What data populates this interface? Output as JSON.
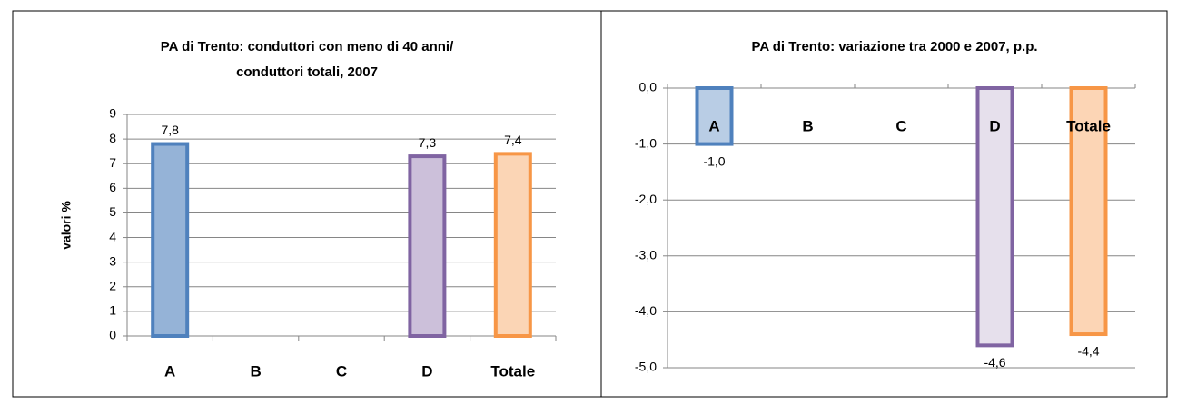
{
  "chart_data": [
    {
      "type": "bar",
      "title": [
        "PA di Trento: conduttori con meno di 40 anni/",
        "conduttori  totali, 2007"
      ],
      "y_label": "valori %",
      "categories": [
        "A",
        "B",
        "C",
        "D",
        "Totale"
      ],
      "values": [
        7.8,
        null,
        null,
        7.3,
        7.4
      ],
      "value_labels": [
        "7,8",
        null,
        null,
        "7,3",
        "7,4"
      ],
      "colors": [
        "#95b3d7",
        null,
        null,
        "#ccc0da",
        "#fbd5b5"
      ],
      "edge_colors": [
        "#4f81bd",
        null,
        null,
        "#8064a2",
        "#f79646"
      ],
      "ylim": [
        0,
        9
      ],
      "yticks": [
        0,
        1,
        2,
        3,
        4,
        5,
        6,
        7,
        8,
        9
      ],
      "grid": true
    },
    {
      "type": "bar",
      "title": [
        "PA di Trento: variazione tra 2000 e 2007, p.p."
      ],
      "categories": [
        "A",
        "B",
        "C",
        "D",
        "Totale"
      ],
      "values": [
        -1.0,
        null,
        null,
        -4.6,
        -4.4
      ],
      "value_labels": [
        "-1,0",
        null,
        null,
        "-4,6",
        "-4,4"
      ],
      "colors": [
        "#b9cde5",
        null,
        null,
        "#e6e0ec",
        "#fcd5b5"
      ],
      "edge_colors": [
        "#4f81bd",
        null,
        null,
        "#8064a2",
        "#f79646"
      ],
      "ylim": [
        -5,
        0
      ],
      "yticks": [
        {
          "value": 0,
          "label": "0,0"
        },
        {
          "value": -1,
          "label": "-1,0"
        },
        {
          "value": -2,
          "label": "-2,0"
        },
        {
          "value": -3,
          "label": "-3,0"
        },
        {
          "value": -4,
          "label": "-4,0"
        },
        {
          "value": -5,
          "label": "-5,0"
        }
      ],
      "grid": true
    }
  ]
}
